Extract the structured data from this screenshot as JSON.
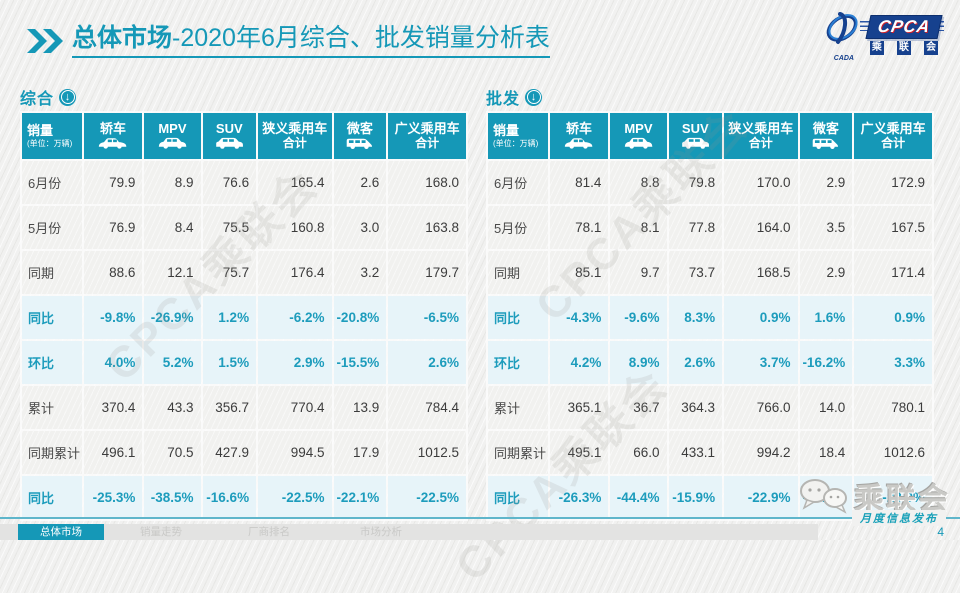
{
  "title": {
    "highlight": "总体市场",
    "rest": "-2020年6月综合、批发销量分析表"
  },
  "branding": {
    "cpca": "CPCA",
    "cada": "CADA",
    "short_chars": [
      "乘",
      "联",
      "会"
    ]
  },
  "columns": [
    {
      "label": "销量",
      "unit": "(单位：万辆)",
      "icon": null
    },
    {
      "label": "轿车",
      "icon": "sedan-icon"
    },
    {
      "label": "MPV",
      "icon": "mpv-icon"
    },
    {
      "label": "SUV",
      "icon": "suv-icon"
    },
    {
      "label": "狭义乘用车",
      "label2": "合计",
      "icon": null
    },
    {
      "label": "微客",
      "icon": "van-icon"
    },
    {
      "label": "广义乘用车",
      "label2": "合计",
      "icon": null
    }
  ],
  "tables": [
    {
      "name": "综合",
      "rows": [
        {
          "label": "6月份",
          "type": "normal",
          "values": [
            "79.9",
            "8.9",
            "76.6",
            "165.4",
            "2.6",
            "168.0"
          ]
        },
        {
          "label": "5月份",
          "type": "normal",
          "values": [
            "76.9",
            "8.4",
            "75.5",
            "160.8",
            "3.0",
            "163.8"
          ]
        },
        {
          "label": "同期",
          "type": "normal",
          "values": [
            "88.6",
            "12.1",
            "75.7",
            "176.4",
            "3.2",
            "179.7"
          ]
        },
        {
          "label": "同比",
          "type": "percent",
          "values": [
            "-9.8%",
            "-26.9%",
            "1.2%",
            "-6.2%",
            "-20.8%",
            "-6.5%"
          ]
        },
        {
          "label": "环比",
          "type": "percent",
          "values": [
            "4.0%",
            "5.2%",
            "1.5%",
            "2.9%",
            "-15.5%",
            "2.6%"
          ]
        },
        {
          "label": "累计",
          "type": "normal",
          "values": [
            "370.4",
            "43.3",
            "356.7",
            "770.4",
            "13.9",
            "784.4"
          ]
        },
        {
          "label": "同期累计",
          "type": "normal",
          "values": [
            "496.1",
            "70.5",
            "427.9",
            "994.5",
            "17.9",
            "1012.5"
          ]
        },
        {
          "label": "同比",
          "type": "percent",
          "values": [
            "-25.3%",
            "-38.5%",
            "-16.6%",
            "-22.5%",
            "-22.1%",
            "-22.5%"
          ]
        }
      ]
    },
    {
      "name": "批发",
      "rows": [
        {
          "label": "6月份",
          "type": "normal",
          "values": [
            "81.4",
            "8.8",
            "79.8",
            "170.0",
            "2.9",
            "172.9"
          ]
        },
        {
          "label": "5月份",
          "type": "normal",
          "values": [
            "78.1",
            "8.1",
            "77.8",
            "164.0",
            "3.5",
            "167.5"
          ]
        },
        {
          "label": "同期",
          "type": "normal",
          "values": [
            "85.1",
            "9.7",
            "73.7",
            "168.5",
            "2.9",
            "171.4"
          ]
        },
        {
          "label": "同比",
          "type": "percent",
          "values": [
            "-4.3%",
            "-9.6%",
            "8.3%",
            "0.9%",
            "1.6%",
            "0.9%"
          ]
        },
        {
          "label": "环比",
          "type": "percent",
          "values": [
            "4.2%",
            "8.9%",
            "2.6%",
            "3.7%",
            "-16.2%",
            "3.3%"
          ]
        },
        {
          "label": "累计",
          "type": "normal",
          "values": [
            "365.1",
            "36.7",
            "364.3",
            "766.0",
            "14.0",
            "780.1"
          ]
        },
        {
          "label": "同期累计",
          "type": "normal",
          "values": [
            "495.1",
            "66.0",
            "433.1",
            "994.2",
            "18.4",
            "1012.6"
          ]
        },
        {
          "label": "同比",
          "type": "percent",
          "values": [
            "-26.3%",
            "-44.4%",
            "-15.9%",
            "-22.9%",
            "-23.8%",
            "-23.0%"
          ]
        }
      ]
    }
  ],
  "watermarks": {
    "diagonal": "CPCA乘联会",
    "social": "乘联会"
  },
  "footer": {
    "tabs": [
      {
        "label": "总体市场",
        "active": true
      },
      {
        "label": "销量走势",
        "active": false
      },
      {
        "label": "厂商排名",
        "active": false
      },
      {
        "label": "市场分析",
        "active": false
      }
    ],
    "ribbon_label": "月度信息发布",
    "page": "4"
  },
  "colors": {
    "teal": "#1598b7",
    "percent_row_bg": "#e7f4f9",
    "navy": "#16418e",
    "red_accent": "#d0212a"
  }
}
